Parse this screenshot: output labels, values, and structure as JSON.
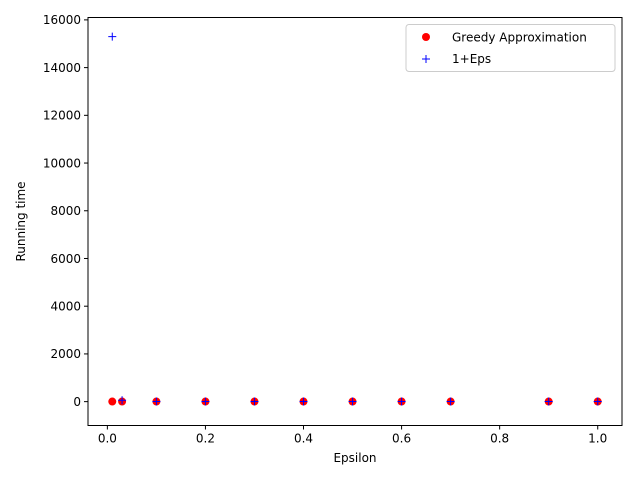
{
  "chart_data": {
    "type": "scatter",
    "title": "",
    "xlabel": "Epsilon",
    "ylabel": "Running time",
    "xlim": [
      -0.0395,
      1.0495
    ],
    "ylim": [
      -1000,
      16100
    ],
    "x_ticks": [
      0.0,
      0.2,
      0.4,
      0.6,
      0.8,
      1.0
    ],
    "x_tick_labels": [
      "0.0",
      "0.2",
      "0.4",
      "0.6",
      "0.8",
      "1.0"
    ],
    "y_ticks": [
      0,
      2000,
      4000,
      6000,
      8000,
      10000,
      12000,
      14000,
      16000
    ],
    "y_tick_labels": [
      "0",
      "2000",
      "4000",
      "6000",
      "8000",
      "10000",
      "12000",
      "14000",
      "16000"
    ],
    "grid": false,
    "legend_position": "top-right",
    "series": [
      {
        "name": "Greedy Approximation",
        "marker": "circle",
        "color": "#ff0000",
        "x": [
          0.01,
          0.03,
          0.1,
          0.2,
          0.3,
          0.4,
          0.5,
          0.6,
          0.7,
          0.9,
          1.0
        ],
        "y": [
          5,
          5,
          5,
          5,
          5,
          5,
          5,
          5,
          5,
          5,
          5
        ]
      },
      {
        "name": "1+Eps",
        "marker": "plus",
        "color": "#0000ff",
        "x": [
          0.01,
          0.03,
          0.1,
          0.2,
          0.3,
          0.4,
          0.5,
          0.6,
          0.7,
          0.9,
          1.0
        ],
        "y": [
          15300,
          60,
          5,
          5,
          5,
          5,
          5,
          5,
          5,
          5,
          5
        ]
      }
    ]
  }
}
